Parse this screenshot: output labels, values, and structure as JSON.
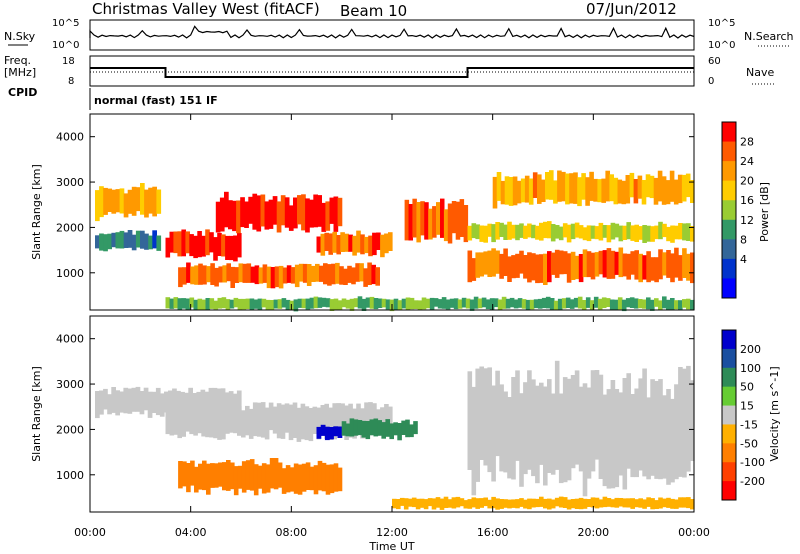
{
  "header": {
    "title": "Christmas Valley West (fitACF)",
    "beam": "Beam 10",
    "date": "07/Jun/2012"
  },
  "panels": {
    "noise": {
      "left_label": "N.Sky",
      "right_label": "N.Search",
      "left_ticks": [
        "10^5",
        "10^0"
      ],
      "right_ticks": [
        "10^5",
        "10^0"
      ]
    },
    "freq": {
      "left_label_1": "Freq.",
      "left_label_2": "[MHz]",
      "right_label": "Nave",
      "left_ticks": [
        "18",
        "8"
      ],
      "right_ticks": [
        "60",
        "0"
      ]
    },
    "cpid": {
      "label": "CPID",
      "mode_text": "normal (fast) 151 IF"
    }
  },
  "power_colorbar": {
    "title": "Power [dB]",
    "ticks": [
      "28",
      "24",
      "20",
      "16",
      "12",
      "8",
      "4"
    ],
    "colors": [
      "#ff0000",
      "#ff5a00",
      "#ff9900",
      "#ffcc00",
      "#99cc33",
      "#339966",
      "#336699",
      "#0033cc",
      "#0000ff"
    ]
  },
  "velocity_colorbar": {
    "title": "Velocity [m s^-1]",
    "ticks": [
      "200",
      "100",
      "50",
      "15",
      "-15",
      "-50",
      "-100",
      "-200"
    ],
    "colors": [
      "#0000cc",
      "#1a4fa0",
      "#2e8b57",
      "#66cc33",
      "#c8c8c8",
      "#ffb000",
      "#ff7f00",
      "#ff4000",
      "#ff0000"
    ]
  },
  "chart_data": {
    "type": "heatmap",
    "xlabel": "Time UT",
    "ylabel": "Slant Range [km]",
    "x_ticks": [
      "00:00",
      "04:00",
      "08:00",
      "12:00",
      "16:00",
      "20:00",
      "00:00"
    ],
    "xlim": [
      0,
      24
    ],
    "ylim": [
      180,
      4500
    ],
    "y_ticks": [
      1000,
      2000,
      3000,
      4000
    ],
    "frequency_mhz": [
      {
        "start": 0,
        "end": 3,
        "value": 14
      },
      {
        "start": 3,
        "end": 15,
        "value": 11
      },
      {
        "start": 15,
        "end": 24,
        "value": 14
      }
    ],
    "power_bands": [
      {
        "t0": 0.2,
        "t1": 2.8,
        "r0": 2200,
        "r1": 2900,
        "value": 20
      },
      {
        "t0": 0.2,
        "t1": 2.8,
        "r0": 1500,
        "r1": 1900,
        "value": 8
      },
      {
        "t0": 3.0,
        "t1": 6.0,
        "r0": 1300,
        "r1": 1900,
        "value": 28
      },
      {
        "t0": 5.0,
        "t1": 10.0,
        "r0": 1900,
        "r1": 2700,
        "value": 28
      },
      {
        "t0": 3.5,
        "t1": 11.5,
        "r0": 700,
        "r1": 1200,
        "value": 24
      },
      {
        "t0": 9.0,
        "t1": 12.0,
        "r0": 1400,
        "r1": 1900,
        "value": 24
      },
      {
        "t0": 12.5,
        "t1": 15.0,
        "r0": 1700,
        "r1": 2600,
        "value": 24
      },
      {
        "t0": 15.0,
        "t1": 24.0,
        "r0": 800,
        "r1": 1500,
        "value": 24
      },
      {
        "t0": 15.0,
        "t1": 24.0,
        "r0": 1700,
        "r1": 2100,
        "value": 16
      },
      {
        "t0": 16.0,
        "t1": 24.0,
        "r0": 2500,
        "r1": 3200,
        "value": 20
      },
      {
        "t0": 3.0,
        "t1": 24.0,
        "r0": 180,
        "r1": 450,
        "value": 12
      }
    ],
    "velocity_bands": [
      {
        "t0": 0.2,
        "t1": 6.0,
        "r0": 2300,
        "r1": 2900,
        "value": 0
      },
      {
        "t0": 3.0,
        "t1": 12.0,
        "r0": 1800,
        "r1": 2600,
        "value": 0
      },
      {
        "t0": 3.5,
        "t1": 10.0,
        "r0": 600,
        "r1": 1300,
        "value": -60
      },
      {
        "t0": 9.0,
        "t1": 10.0,
        "r0": 1800,
        "r1": 2100,
        "value": 200
      },
      {
        "t0": 10.0,
        "t1": 13.0,
        "r0": 1800,
        "r1": 2200,
        "value": 50
      },
      {
        "t0": 12.0,
        "t1": 24.0,
        "r0": 250,
        "r1": 500,
        "value": -40
      },
      {
        "t0": 15.0,
        "t1": 24.0,
        "r0": 800,
        "r1": 3300,
        "value": 0
      }
    ]
  }
}
